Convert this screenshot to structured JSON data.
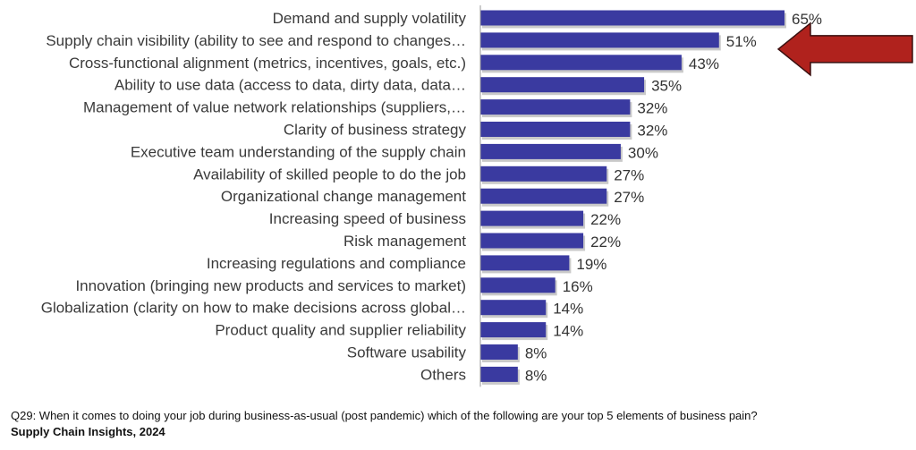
{
  "colors": {
    "bar": "#3a3aa0",
    "bar_shadow": "#c9c9c9",
    "axis": "#9a9a9a",
    "arrow": "#b0221d",
    "arrow_outline": "#3a1010"
  },
  "chart_data": {
    "type": "bar",
    "orientation": "horizontal",
    "categories": [
      "Demand and supply volatility",
      "Supply chain visibility (ability to see and respond to changes…",
      "Cross-functional alignment (metrics, incentives, goals, etc.)",
      "Ability to use data (access to data, dirty data, data…",
      "Management of value network relationships (suppliers,…",
      "Clarity of business strategy",
      "Executive team understanding of the supply chain",
      "Availability of skilled people to do the job",
      "Organizational change management",
      "Increasing speed of business",
      "Risk management",
      "Increasing regulations and compliance",
      "Innovation (bringing new products and services to market)",
      "Globalization (clarity on how to make decisions across global…",
      "Product quality and supplier reliability",
      "Software usability",
      "Others"
    ],
    "values": [
      65,
      51,
      43,
      35,
      32,
      32,
      30,
      27,
      27,
      22,
      22,
      19,
      16,
      14,
      14,
      8,
      8
    ],
    "value_labels": [
      "65%",
      "51%",
      "43%",
      "35%",
      "32%",
      "32%",
      "30%",
      "27%",
      "27%",
      "22%",
      "22%",
      "19%",
      "16%",
      "14%",
      "14%",
      "8%",
      "8%"
    ],
    "xlim": [
      0,
      65
    ],
    "grid": false,
    "legend": "none",
    "annotation": {
      "shape": "arrow",
      "points_to_category": "Supply chain visibility (ability to see and respond to changes…"
    }
  },
  "footer": {
    "question": "Q29: When it comes to doing your job during business-as-usual (post pandemic) which of the following are your top 5 elements of business pain?",
    "source": "Supply Chain Insights, 2024"
  }
}
